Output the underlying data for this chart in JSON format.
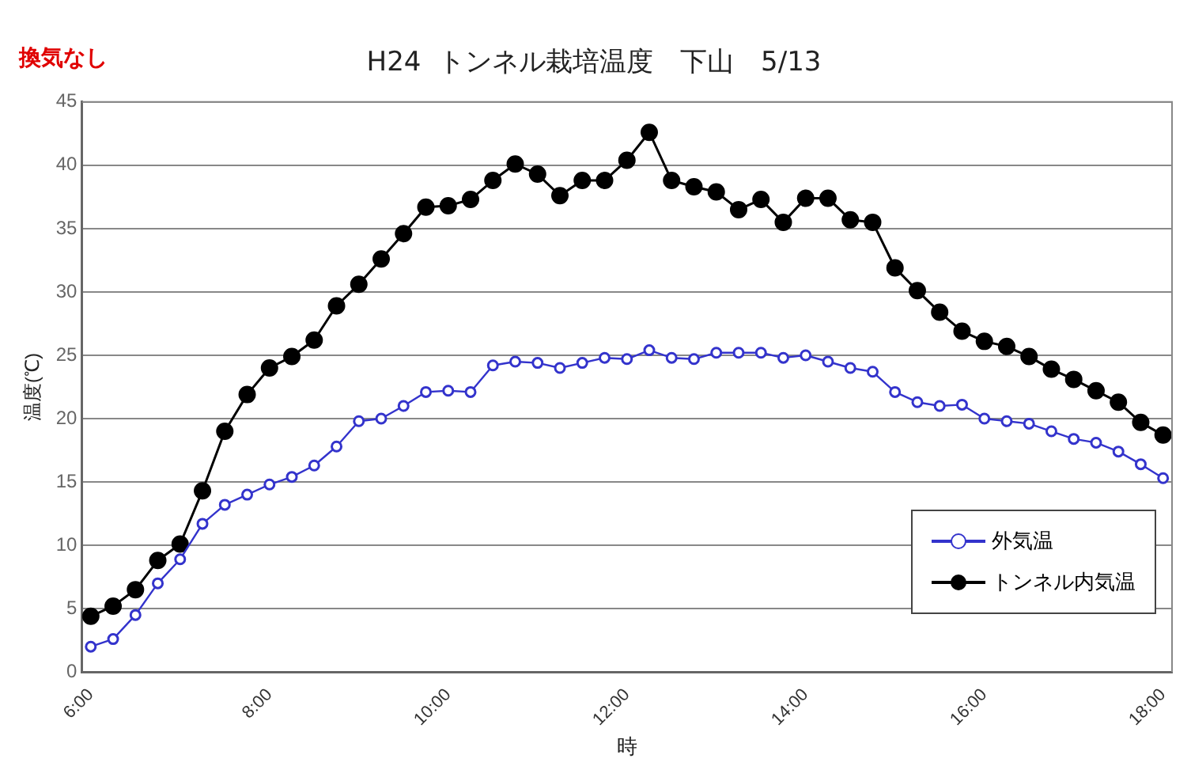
{
  "chart_data": {
    "type": "line",
    "title": "H24  トンネル栽培温度　下山　5/13",
    "xlabel": "時",
    "ylabel": "温度(℃)",
    "annotations": [
      "換気なし"
    ],
    "x": [
      6,
      6.25,
      6.5,
      6.75,
      7,
      7.25,
      7.5,
      7.75,
      8,
      8.25,
      8.5,
      8.75,
      9,
      9.25,
      9.5,
      9.75,
      10,
      10.25,
      10.5,
      10.75,
      11,
      11.25,
      11.5,
      11.75,
      12,
      12.25,
      12.5,
      12.75,
      13,
      13.25,
      13.5,
      13.75,
      14,
      14.25,
      14.5,
      14.75,
      15,
      15.25,
      15.5,
      15.75,
      16,
      16.25,
      16.5,
      16.75,
      17,
      17.25,
      17.5,
      17.75,
      18
    ],
    "series": [
      {
        "name": "外気温",
        "color": "#3333cc",
        "values": [
          2.0,
          2.6,
          4.5,
          7.0,
          8.9,
          11.7,
          13.2,
          14.0,
          14.8,
          15.4,
          16.3,
          17.8,
          19.8,
          20.0,
          21.0,
          22.1,
          22.2,
          22.1,
          24.2,
          24.5,
          24.4,
          24.0,
          24.4,
          24.8,
          24.7,
          25.4,
          24.8,
          24.7,
          25.2,
          25.2,
          25.2,
          24.8,
          25.0,
          24.5,
          24.0,
          23.7,
          22.1,
          21.3,
          21.0,
          21.1,
          20.0,
          19.8,
          19.6,
          19.0,
          18.4,
          18.1,
          17.4,
          16.4,
          15.3
        ]
      },
      {
        "name": "トンネル内気温",
        "color": "#000000",
        "values": [
          4.4,
          5.2,
          6.5,
          8.8,
          10.1,
          14.3,
          19.0,
          21.9,
          24.0,
          24.9,
          26.2,
          28.9,
          30.6,
          32.6,
          34.6,
          36.7,
          36.8,
          37.3,
          38.8,
          40.1,
          39.3,
          37.6,
          38.8,
          38.8,
          40.4,
          42.6,
          38.8,
          38.3,
          37.9,
          36.5,
          37.3,
          35.5,
          37.4,
          37.4,
          35.7,
          35.5,
          31.9,
          30.1,
          28.4,
          26.9,
          26.1,
          25.7,
          24.9,
          23.9,
          23.1,
          22.2,
          21.3,
          19.7,
          18.7
        ]
      }
    ],
    "xlim": [
      5.9,
      18.1
    ],
    "xticks": [
      {
        "value": 6,
        "label": "6:00"
      },
      {
        "value": 8,
        "label": "8:00"
      },
      {
        "value": 10,
        "label": "10:00"
      },
      {
        "value": 12,
        "label": "12:00"
      },
      {
        "value": 14,
        "label": "14:00"
      },
      {
        "value": 16,
        "label": "16:00"
      },
      {
        "value": 18,
        "label": "18:00"
      }
    ],
    "ylim": [
      0,
      45
    ],
    "yticks": [
      0,
      5,
      10,
      15,
      20,
      25,
      30,
      35,
      40,
      45
    ],
    "grid": "y",
    "legend": "bottom right",
    "marker": "circle",
    "line_style": "solid"
  }
}
